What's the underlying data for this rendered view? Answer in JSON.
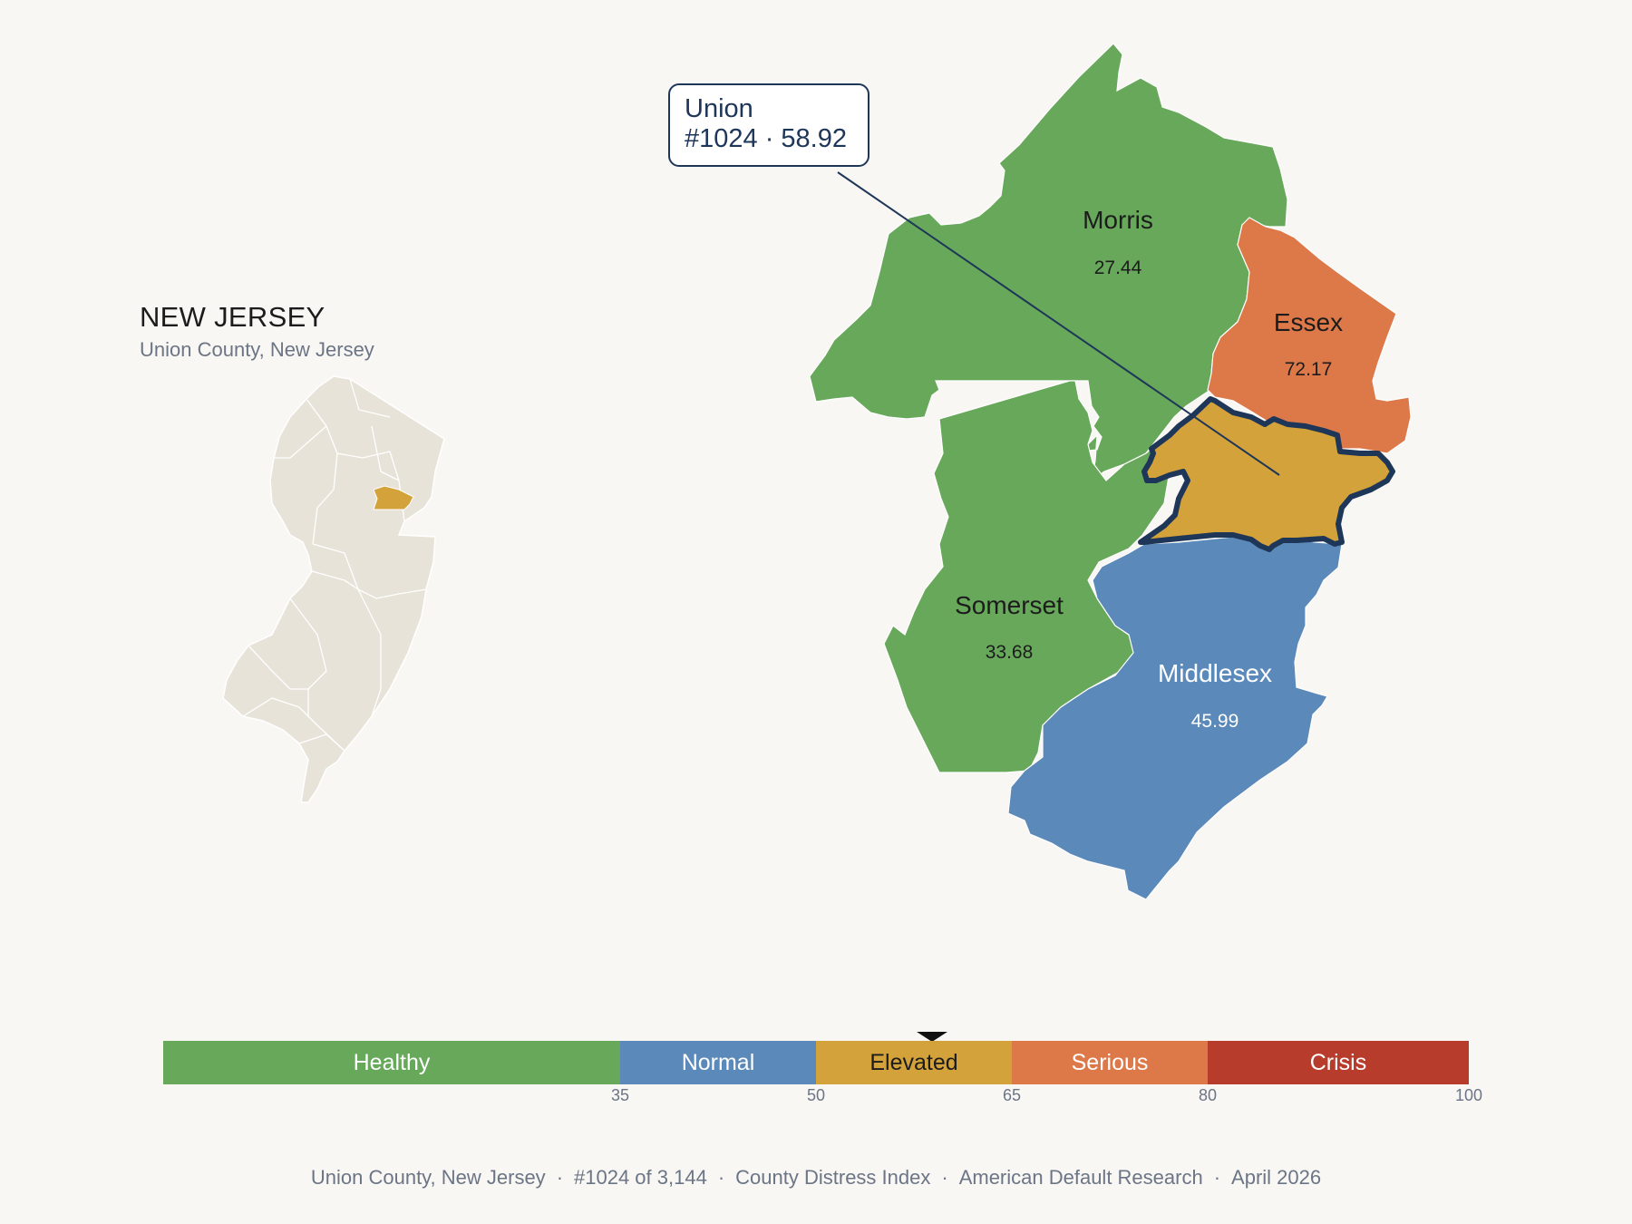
{
  "inset": {
    "title": "NEW JERSEY",
    "subtitle": "Union County, New Jersey"
  },
  "counties": [
    {
      "name": "Morris",
      "value": "27.44",
      "category": "Healthy",
      "color": "#67a85a"
    },
    {
      "name": "Essex",
      "value": "72.17",
      "category": "Serious",
      "color": "#dd7849"
    },
    {
      "name": "Somerset",
      "value": "33.68",
      "category": "Healthy",
      "color": "#67a85a"
    },
    {
      "name": "Middlesex",
      "value": "45.99",
      "category": "Normal",
      "color": "#5b89b9"
    },
    {
      "name": "Union",
      "value": "58.92",
      "category": "Elevated",
      "color": "#d4a23a",
      "highlighted": true
    }
  ],
  "callout": {
    "line1": "Union",
    "line2": "#1024 · 58.92"
  },
  "scale": {
    "segments": [
      {
        "label": "Healthy",
        "from": 0,
        "to": 35,
        "color": "#67a85a"
      },
      {
        "label": "Normal",
        "from": 35,
        "to": 50,
        "color": "#5b89b9"
      },
      {
        "label": "Elevated",
        "from": 50,
        "to": 65,
        "color": "#d4a23a"
      },
      {
        "label": "Serious",
        "from": 65,
        "to": 80,
        "color": "#dd7849"
      },
      {
        "label": "Crisis",
        "from": 80,
        "to": 100,
        "color": "#b83c2b"
      }
    ],
    "ticks": [
      "35",
      "50",
      "65",
      "80",
      "100"
    ],
    "marker_value": 58.92
  },
  "footer": {
    "county": "Union County, New Jersey",
    "rank": "#1024 of 3,144",
    "index": "County Distress Index",
    "source": "American Default Research",
    "date": "April 2026",
    "separator": "·"
  },
  "colors": {
    "background": "#f9f7f4",
    "inset_fill": "#e8e3d9",
    "highlight_outline": "#1e3658"
  }
}
